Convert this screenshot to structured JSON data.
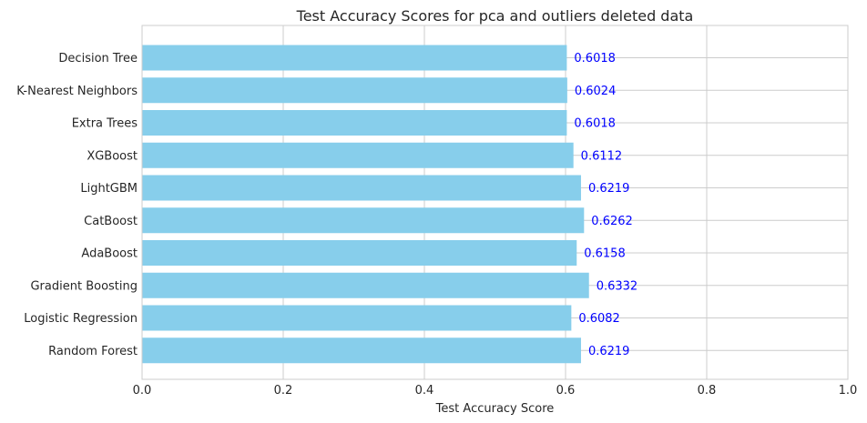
{
  "chart_data": {
    "type": "bar",
    "orientation": "horizontal",
    "title": "Test Accuracy Scores for pca and outliers deleted data",
    "xlabel": "Test Accuracy Score",
    "ylabel": "",
    "xlim": [
      0,
      1.0
    ],
    "x_ticks": [
      "0.0",
      "0.2",
      "0.4",
      "0.6",
      "0.8",
      "1.0"
    ],
    "grid": true,
    "categories": [
      "Decision Tree",
      "K-Nearest Neighbors",
      "Extra Trees",
      "XGBoost",
      "LightGBM",
      "CatBoost",
      "AdaBoost",
      "Gradient Boosting",
      "Logistic Regression",
      "Random Forest"
    ],
    "values": [
      0.6018,
      0.6024,
      0.6018,
      0.6112,
      0.6219,
      0.6262,
      0.6158,
      0.6332,
      0.6082,
      0.6219
    ],
    "data_labels": [
      "0.6018",
      "0.6024",
      "0.6018",
      "0.6112",
      "0.6219",
      "0.6262",
      "0.6158",
      "0.6332",
      "0.6082",
      "0.6219"
    ],
    "colors": {
      "bar": "#87ceeb",
      "data_label": "#0000ff",
      "grid": "#cccccc",
      "axis": "#cccccc",
      "text": "#262626"
    }
  }
}
